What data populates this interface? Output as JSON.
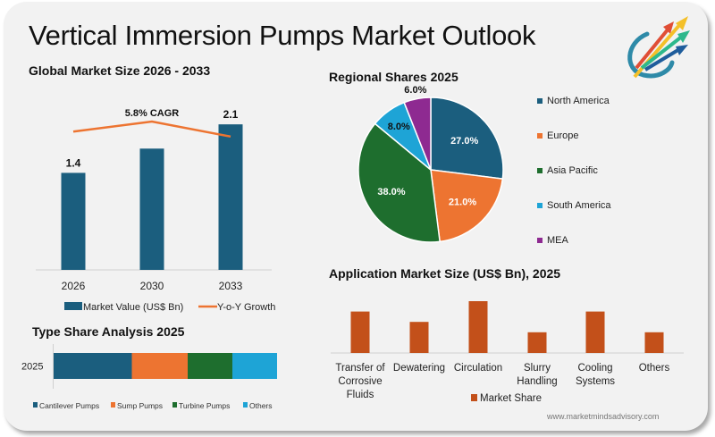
{
  "header": {
    "title": "Vertical Immersion Pumps Market Outlook",
    "logo": "market-minds-advisory-logo"
  },
  "colors": {
    "navy": "#1b5e7e",
    "orange": "#ed7431",
    "green": "#1e6e2e",
    "cyan": "#1ea4d6",
    "purple": "#8e2a91",
    "rust": "#c3501a",
    "card_bg": "#f2f2f2"
  },
  "footer": {
    "url": "www.marketmindsadvisory.com"
  },
  "chart_data": [
    {
      "id": "global_market",
      "type": "bar",
      "title": "Global Market Size 2026 - 2033",
      "categories": [
        "2026",
        "2030",
        "2033"
      ],
      "series": [
        {
          "name": "Market Value (US$ Bn)",
          "type": "bar",
          "values": [
            1.4,
            1.75,
            2.1
          ],
          "data_labels": [
            "1.4",
            "",
            "2.1"
          ]
        },
        {
          "name": "Y-o-Y Growth",
          "type": "line",
          "values": [
            0.92,
            1.0,
            0.88
          ]
        }
      ],
      "annotation": "5.8% CAGR",
      "xlabel": "",
      "ylabel": "",
      "ylim": [
        0,
        2.3
      ],
      "legend": "bottom",
      "grid": false
    },
    {
      "id": "regional_shares",
      "type": "pie",
      "title": "Regional Shares 2025",
      "labels": [
        "North America",
        "Europe",
        "Asia Pacific",
        "South America",
        "MEA"
      ],
      "values": [
        27.0,
        21.0,
        38.0,
        8.0,
        6.0
      ],
      "data_labels": [
        "27.0%",
        "21.0%",
        "38.0%",
        "8.0%",
        "6.0%"
      ],
      "legend": "right"
    },
    {
      "id": "type_share",
      "type": "bar",
      "orientation": "horizontal-stacked",
      "title": "Type Share Analysis 2025",
      "categories": [
        "2025"
      ],
      "series": [
        {
          "name": "Cantilever Pumps",
          "values": [
            35
          ]
        },
        {
          "name": "Sump Pumps",
          "values": [
            25
          ]
        },
        {
          "name": "Turbine Pumps",
          "values": [
            20
          ]
        },
        {
          "name": "Others",
          "values": [
            20
          ]
        }
      ],
      "legend": "bottom"
    },
    {
      "id": "application_market",
      "type": "bar",
      "title": "Application Market Size (US$ Bn), 2025",
      "categories": [
        "Transfer of Corrosive Fluids",
        "Dewatering",
        "Circulation",
        "Slurry Handling",
        "Cooling Systems",
        "Others"
      ],
      "category_lines": [
        [
          "Transfer of",
          "Corrosive",
          "Fluids"
        ],
        [
          "Dewatering"
        ],
        [
          "Circulation"
        ],
        [
          "Slurry",
          "Handling"
        ],
        [
          "Cooling",
          "Systems"
        ],
        [
          "Others"
        ]
      ],
      "series": [
        {
          "name": "Market Share",
          "values": [
            4,
            3,
            5,
            2,
            4,
            2
          ]
        }
      ],
      "ylim": [
        0,
        5
      ],
      "legend": "bottom"
    }
  ]
}
